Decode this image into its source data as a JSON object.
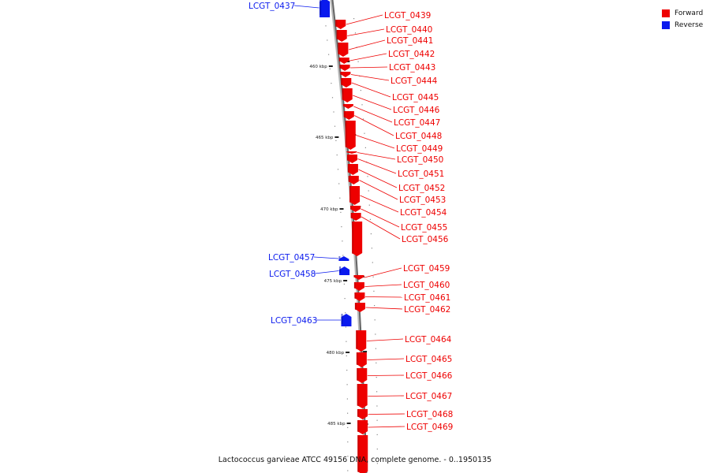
{
  "colors": {
    "forward": "#ee0000",
    "reverse": "#0a1aee",
    "backbone": "#999999"
  },
  "legend": [
    {
      "label": "Forward",
      "color": "#ee0000"
    },
    {
      "label": "Reverse",
      "color": "#0a1aee"
    }
  ],
  "caption": "Lactococcus garvieae ATCC 49156 DNA, complete genome. - 0..1950135",
  "tick_labels": [
    "460 kbp",
    "465 kbp",
    "470 kbp",
    "475 kbp",
    "480 kbp",
    "485 kbp"
  ],
  "genes": [
    {
      "name": "LCGT_0437",
      "strand": "reverse"
    },
    {
      "name": "LCGT_0439",
      "strand": "forward"
    },
    {
      "name": "LCGT_0440",
      "strand": "forward"
    },
    {
      "name": "LCGT_0441",
      "strand": "forward"
    },
    {
      "name": "LCGT_0442",
      "strand": "forward"
    },
    {
      "name": "LCGT_0443",
      "strand": "forward"
    },
    {
      "name": "LCGT_0444",
      "strand": "forward"
    },
    {
      "name": "LCGT_0445",
      "strand": "forward"
    },
    {
      "name": "LCGT_0446",
      "strand": "forward"
    },
    {
      "name": "LCGT_0447",
      "strand": "forward"
    },
    {
      "name": "LCGT_0448",
      "strand": "forward"
    },
    {
      "name": "LCGT_0449",
      "strand": "forward"
    },
    {
      "name": "LCGT_0450",
      "strand": "forward"
    },
    {
      "name": "LCGT_0451",
      "strand": "forward"
    },
    {
      "name": "LCGT_0452",
      "strand": "forward"
    },
    {
      "name": "LCGT_0453",
      "strand": "forward"
    },
    {
      "name": "LCGT_0454",
      "strand": "forward"
    },
    {
      "name": "LCGT_0455",
      "strand": "forward"
    },
    {
      "name": "LCGT_0456",
      "strand": "forward"
    },
    {
      "name": "LCGT_0457",
      "strand": "reverse"
    },
    {
      "name": "LCGT_0458",
      "strand": "reverse"
    },
    {
      "name": "LCGT_0459",
      "strand": "forward"
    },
    {
      "name": "LCGT_0460",
      "strand": "forward"
    },
    {
      "name": "LCGT_0461",
      "strand": "forward"
    },
    {
      "name": "LCGT_0462",
      "strand": "forward"
    },
    {
      "name": "LCGT_0463",
      "strand": "reverse"
    },
    {
      "name": "LCGT_0464",
      "strand": "forward"
    },
    {
      "name": "LCGT_0465",
      "strand": "forward"
    },
    {
      "name": "LCGT_0466",
      "strand": "forward"
    },
    {
      "name": "LCGT_0467",
      "strand": "forward"
    },
    {
      "name": "LCGT_0468",
      "strand": "forward"
    },
    {
      "name": "LCGT_0469",
      "strand": "forward"
    }
  ]
}
